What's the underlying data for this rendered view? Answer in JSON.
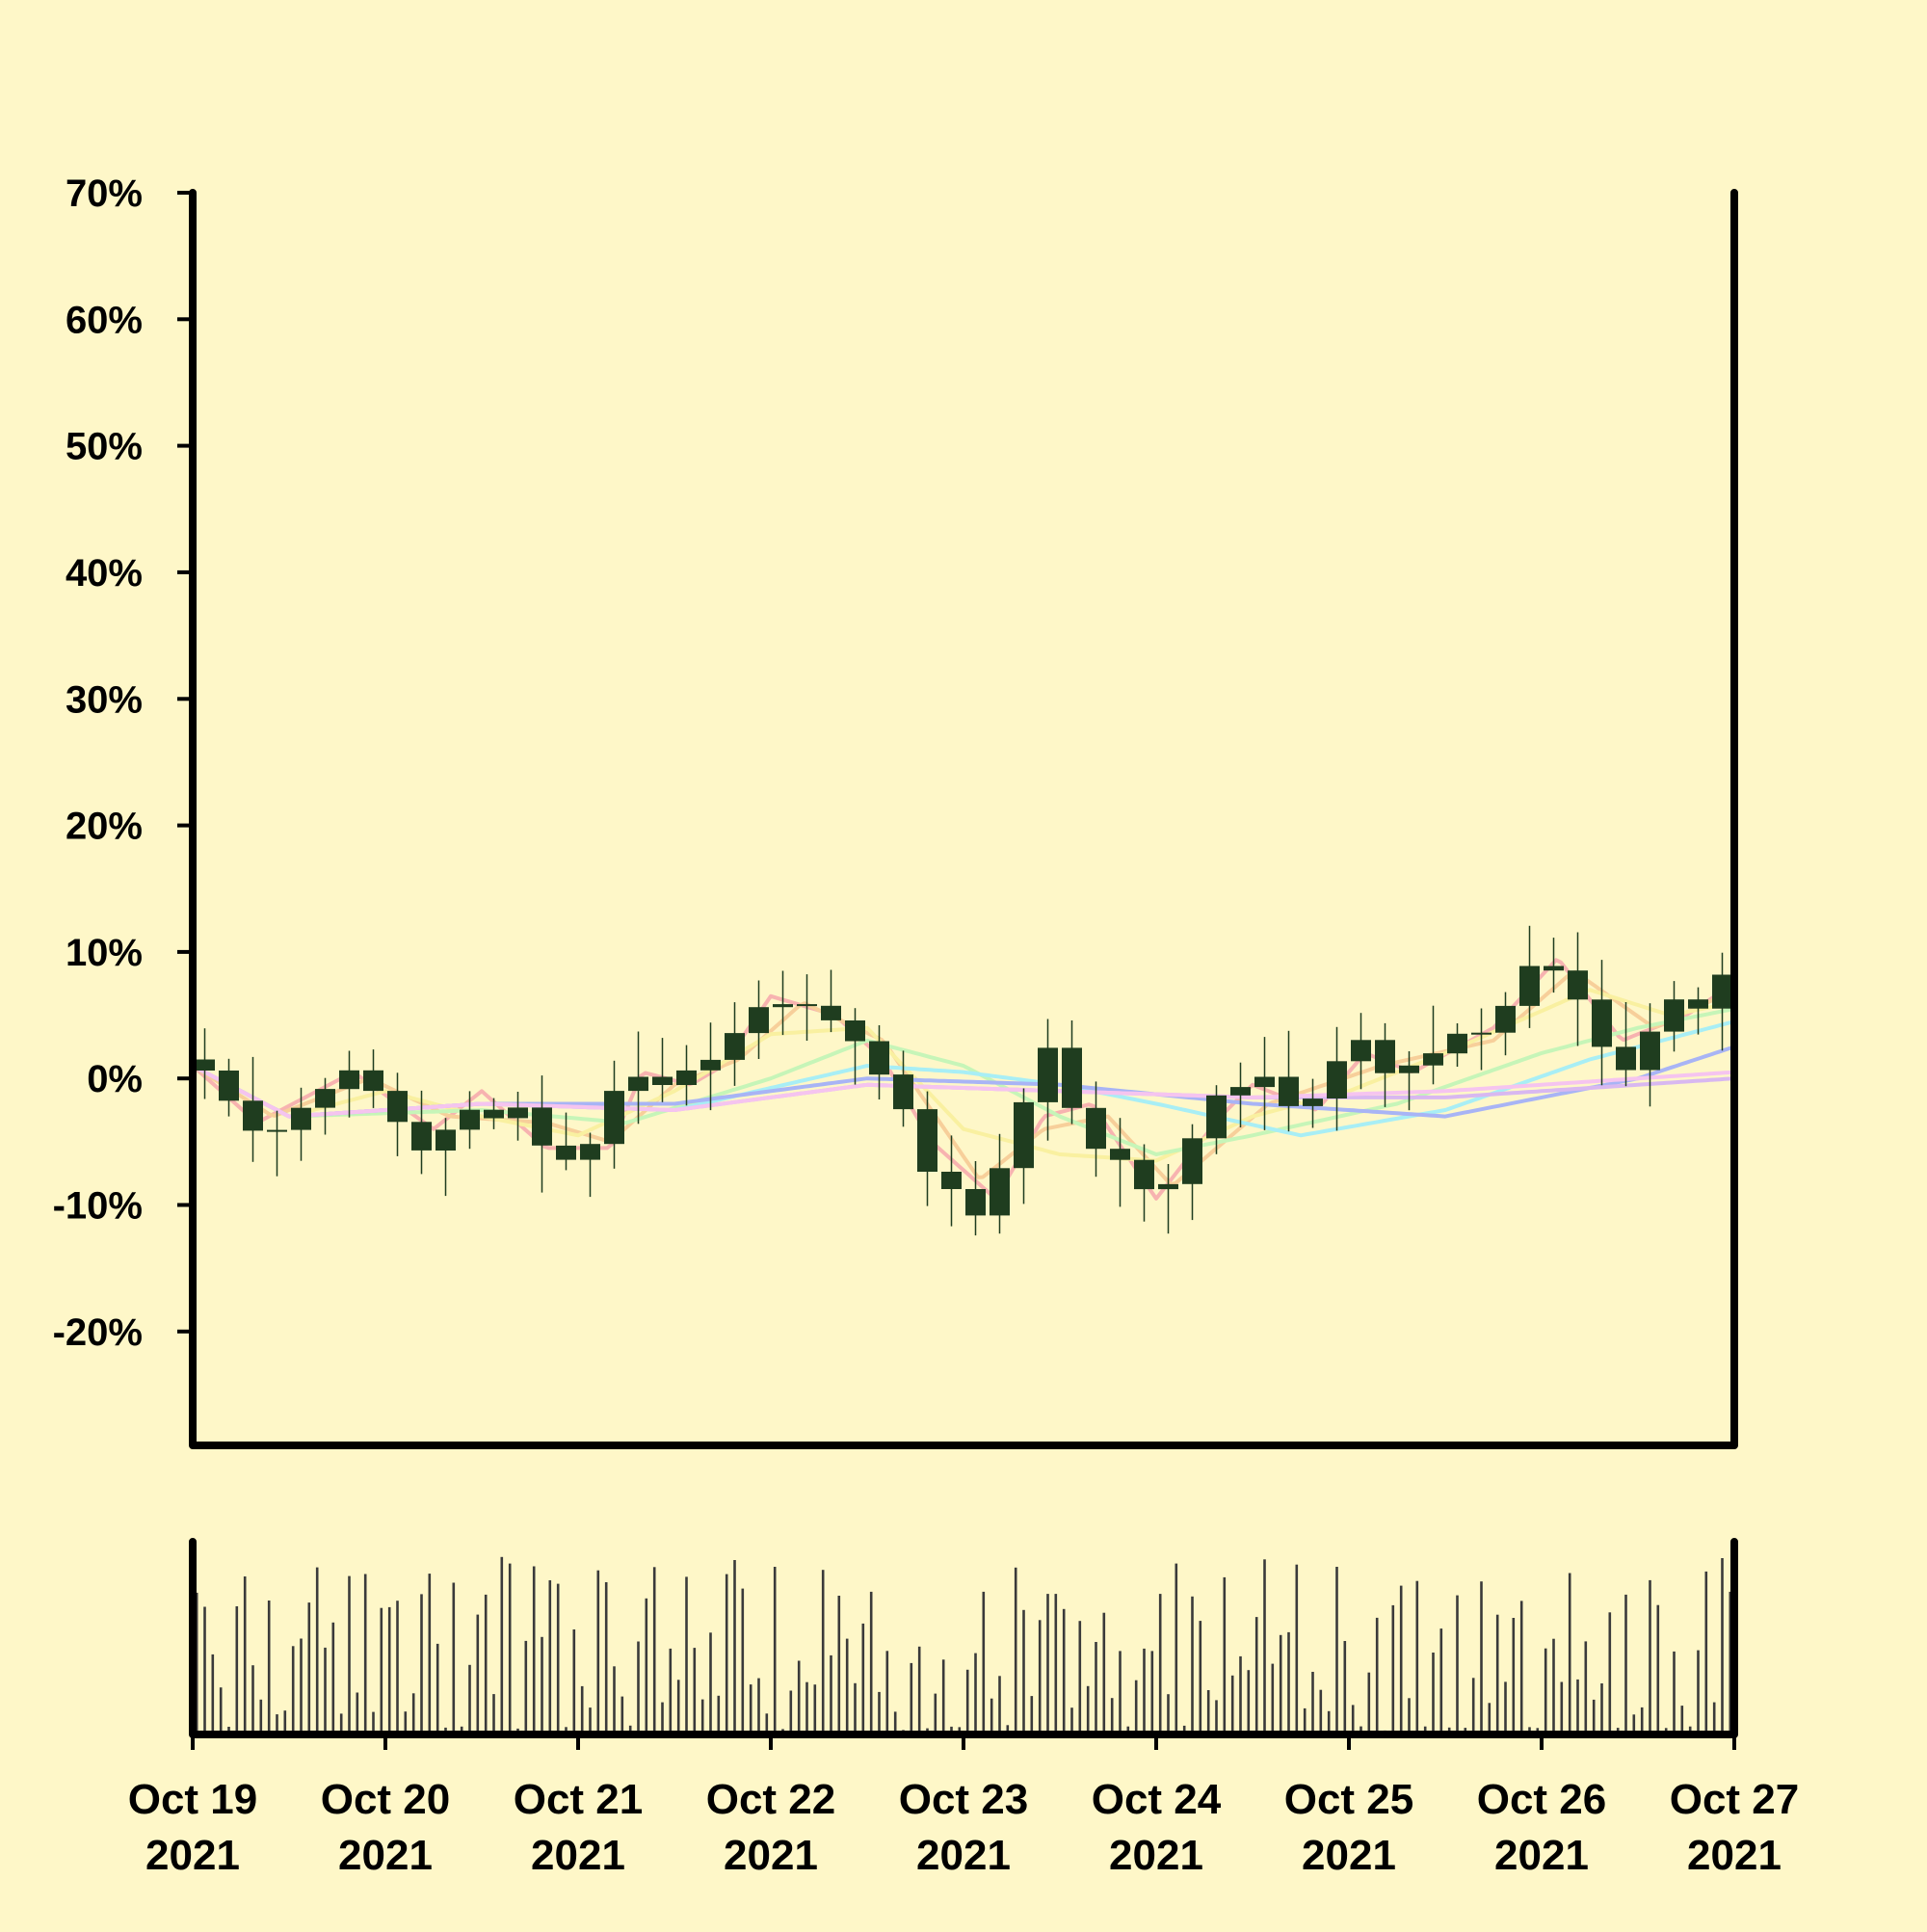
{
  "chart_data": {
    "type": "candlestick",
    "background": "#fef7c8",
    "y_axis": {
      "min": -29,
      "max": 70,
      "ticks": [
        70,
        60,
        50,
        40,
        30,
        20,
        10,
        0,
        -10,
        -20
      ],
      "tick_labels": [
        "70%",
        "60%",
        "50%",
        "40%",
        "30%",
        "20%",
        "10%",
        "0%",
        "-10%",
        "-20%"
      ]
    },
    "x_axis": {
      "start": "2021-10-19",
      "end": "2021-10-27",
      "tick_labels": [
        {
          "date": "2021-10-19",
          "line1": "Oct 19",
          "line2": "2021"
        },
        {
          "date": "2021-10-20",
          "line1": "Oct 20",
          "line2": "2021"
        },
        {
          "date": "2021-10-21",
          "line1": "Oct 21",
          "line2": "2021"
        },
        {
          "date": "2021-10-22",
          "line1": "Oct 22",
          "line2": "2021"
        },
        {
          "date": "2021-10-23",
          "line1": "Oct 23",
          "line2": "2021"
        },
        {
          "date": "2021-10-24",
          "line1": "Oct 24",
          "line2": "2021"
        },
        {
          "date": "2021-10-25",
          "line1": "Oct 25",
          "line2": "2021"
        },
        {
          "date": "2021-10-26",
          "line1": "Oct 26",
          "line2": "2021"
        },
        {
          "date": "2021-10-27",
          "line1": "Oct 27",
          "line2": "2021"
        }
      ]
    },
    "candle_color": "#1f3d1f",
    "volume_color": "#3a3a3a",
    "close_anchors": [
      {
        "date": "2021-10-19T00:00",
        "value": 1.5
      },
      {
        "date": "2021-10-19T06:00",
        "value": -4
      },
      {
        "date": "2021-10-19T12:00",
        "value": -3
      },
      {
        "date": "2021-10-19T18:00",
        "value": 0.5
      },
      {
        "date": "2021-10-20T00:00",
        "value": -2
      },
      {
        "date": "2021-10-20T04:00",
        "value": -5
      },
      {
        "date": "2021-10-20T10:00",
        "value": -2
      },
      {
        "date": "2021-10-20T16:00",
        "value": -2.5
      },
      {
        "date": "2021-10-20T22:00",
        "value": -5.5
      },
      {
        "date": "2021-10-21T03:00",
        "value": -4.5
      },
      {
        "date": "2021-10-21T06:00",
        "value": 1
      },
      {
        "date": "2021-10-21T12:00",
        "value": -1
      },
      {
        "date": "2021-10-21T18:00",
        "value": 1.5
      },
      {
        "date": "2021-10-22T00:00",
        "value": 7
      },
      {
        "date": "2021-10-22T06:00",
        "value": 5
      },
      {
        "date": "2021-10-22T10:00",
        "value": 4.5
      },
      {
        "date": "2021-10-22T14:00",
        "value": 0
      },
      {
        "date": "2021-10-22T20:00",
        "value": -7
      },
      {
        "date": "2021-10-23T02:00",
        "value": -11
      },
      {
        "date": "2021-10-23T06:00",
        "value": -4
      },
      {
        "date": "2021-10-23T10:00",
        "value": 2.5
      },
      {
        "date": "2021-10-23T14:00",
        "value": -4
      },
      {
        "date": "2021-10-23T20:00",
        "value": -6
      },
      {
        "date": "2021-10-24T00:00",
        "value": -11
      },
      {
        "date": "2021-10-24T06:00",
        "value": -2
      },
      {
        "date": "2021-10-24T12:00",
        "value": 0
      },
      {
        "date": "2021-10-24T18:00",
        "value": -3
      },
      {
        "date": "2021-10-25T00:00",
        "value": 3
      },
      {
        "date": "2021-10-25T06:00",
        "value": 0
      },
      {
        "date": "2021-10-25T12:00",
        "value": 2
      },
      {
        "date": "2021-10-25T18:00",
        "value": 5
      },
      {
        "date": "2021-10-26T00:00",
        "value": 11
      },
      {
        "date": "2021-10-26T06:00",
        "value": 4
      },
      {
        "date": "2021-10-26T10:00",
        "value": 1
      },
      {
        "date": "2021-10-26T16:00",
        "value": 6
      },
      {
        "date": "2021-10-26T22:00",
        "value": 7
      },
      {
        "date": "2021-10-27T00:00",
        "value": 9.5
      }
    ],
    "moving_averages": [
      {
        "color": "#f7b3b0",
        "anchors": [
          {
            "date": "2021-10-19T00:00",
            "value": 1
          },
          {
            "date": "2021-10-19T08:00",
            "value": -3.5
          },
          {
            "date": "2021-10-19T20:00",
            "value": 0.5
          },
          {
            "date": "2021-10-20T06:00",
            "value": -4
          },
          {
            "date": "2021-10-20T12:00",
            "value": -1
          },
          {
            "date": "2021-10-20T20:00",
            "value": -5.5
          },
          {
            "date": "2021-10-21T04:00",
            "value": -5.5
          },
          {
            "date": "2021-10-21T08:00",
            "value": 0.5
          },
          {
            "date": "2021-10-21T14:00",
            "value": -0.5
          },
          {
            "date": "2021-10-21T18:00",
            "value": 1
          },
          {
            "date": "2021-10-22T00:00",
            "value": 6.5
          },
          {
            "date": "2021-10-22T08:00",
            "value": 5
          },
          {
            "date": "2021-10-22T14:00",
            "value": 1.5
          },
          {
            "date": "2021-10-22T20:00",
            "value": -5
          },
          {
            "date": "2021-10-23T04:00",
            "value": -9.5
          },
          {
            "date": "2021-10-23T10:00",
            "value": -3
          },
          {
            "date": "2021-10-23T16:00",
            "value": -2
          },
          {
            "date": "2021-10-24T00:00",
            "value": -9.5
          },
          {
            "date": "2021-10-24T08:00",
            "value": -3
          },
          {
            "date": "2021-10-24T12:00",
            "value": -0.5
          },
          {
            "date": "2021-10-24T20:00",
            "value": -2.5
          },
          {
            "date": "2021-10-25T02:00",
            "value": 2
          },
          {
            "date": "2021-10-25T08:00",
            "value": 0.5
          },
          {
            "date": "2021-10-25T18:00",
            "value": 4
          },
          {
            "date": "2021-10-26T02:00",
            "value": 9.5
          },
          {
            "date": "2021-10-26T10:00",
            "value": 3
          },
          {
            "date": "2021-10-26T18:00",
            "value": 5
          },
          {
            "date": "2021-10-27T00:00",
            "value": 7.5
          }
        ]
      },
      {
        "color": "#f7cf9a",
        "anchors": [
          {
            "date": "2021-10-19T00:00",
            "value": 1
          },
          {
            "date": "2021-10-19T10:00",
            "value": -3
          },
          {
            "date": "2021-10-19T22:00",
            "value": 0
          },
          {
            "date": "2021-10-20T08:00",
            "value": -3
          },
          {
            "date": "2021-10-20T20:00",
            "value": -3.5
          },
          {
            "date": "2021-10-21T04:00",
            "value": -5
          },
          {
            "date": "2021-10-21T12:00",
            "value": -0.5
          },
          {
            "date": "2021-10-21T20:00",
            "value": 1.5
          },
          {
            "date": "2021-10-22T04:00",
            "value": 6
          },
          {
            "date": "2021-10-22T14:00",
            "value": 3
          },
          {
            "date": "2021-10-23T02:00",
            "value": -8
          },
          {
            "date": "2021-10-23T10:00",
            "value": -4
          },
          {
            "date": "2021-10-23T18:00",
            "value": -3
          },
          {
            "date": "2021-10-24T02:00",
            "value": -8.5
          },
          {
            "date": "2021-10-24T14:00",
            "value": -2
          },
          {
            "date": "2021-10-25T04:00",
            "value": 1
          },
          {
            "date": "2021-10-25T18:00",
            "value": 3
          },
          {
            "date": "2021-10-26T04:00",
            "value": 8.5
          },
          {
            "date": "2021-10-26T14:00",
            "value": 4
          },
          {
            "date": "2021-10-27T00:00",
            "value": 7
          }
        ]
      },
      {
        "color": "#f9f0a0",
        "anchors": [
          {
            "date": "2021-10-19T00:00",
            "value": 1
          },
          {
            "date": "2021-10-19T12:00",
            "value": -3
          },
          {
            "date": "2021-10-20T00:00",
            "value": -1
          },
          {
            "date": "2021-10-20T12:00",
            "value": -3
          },
          {
            "date": "2021-10-21T00:00",
            "value": -4.5
          },
          {
            "date": "2021-10-21T12:00",
            "value": -1
          },
          {
            "date": "2021-10-22T00:00",
            "value": 3.5
          },
          {
            "date": "2021-10-22T12:00",
            "value": 4
          },
          {
            "date": "2021-10-23T00:00",
            "value": -4
          },
          {
            "date": "2021-10-23T12:00",
            "value": -6
          },
          {
            "date": "2021-10-24T00:00",
            "value": -6.5
          },
          {
            "date": "2021-10-24T12:00",
            "value": -3
          },
          {
            "date": "2021-10-25T00:00",
            "value": -1
          },
          {
            "date": "2021-10-25T12:00",
            "value": 2
          },
          {
            "date": "2021-10-26T06:00",
            "value": 7
          },
          {
            "date": "2021-10-26T16:00",
            "value": 5
          },
          {
            "date": "2021-10-27T00:00",
            "value": 6
          }
        ]
      },
      {
        "color": "#c6f5b8",
        "anchors": [
          {
            "date": "2021-10-19T00:00",
            "value": 1
          },
          {
            "date": "2021-10-19T12:00",
            "value": -3
          },
          {
            "date": "2021-10-20T12:00",
            "value": -2.5
          },
          {
            "date": "2021-10-21T06:00",
            "value": -3.5
          },
          {
            "date": "2021-10-22T00:00",
            "value": 0
          },
          {
            "date": "2021-10-22T12:00",
            "value": 3
          },
          {
            "date": "2021-10-23T00:00",
            "value": 1
          },
          {
            "date": "2021-10-23T12:00",
            "value": -3
          },
          {
            "date": "2021-10-24T00:00",
            "value": -6
          },
          {
            "date": "2021-10-24T12:00",
            "value": -4.5
          },
          {
            "date": "2021-10-25T06:00",
            "value": -2
          },
          {
            "date": "2021-10-26T00:00",
            "value": 2
          },
          {
            "date": "2021-10-26T12:00",
            "value": 4
          },
          {
            "date": "2021-10-27T00:00",
            "value": 5.5
          }
        ]
      },
      {
        "color": "#a8eef5",
        "anchors": [
          {
            "date": "2021-10-19T00:00",
            "value": 1
          },
          {
            "date": "2021-10-19T12:00",
            "value": -3
          },
          {
            "date": "2021-10-20T12:00",
            "value": -2
          },
          {
            "date": "2021-10-21T12:00",
            "value": -2.5
          },
          {
            "date": "2021-10-22T12:00",
            "value": 1
          },
          {
            "date": "2021-10-23T00:00",
            "value": 0.5
          },
          {
            "date": "2021-10-23T12:00",
            "value": -0.5
          },
          {
            "date": "2021-10-24T00:00",
            "value": -2
          },
          {
            "date": "2021-10-24T18:00",
            "value": -4.5
          },
          {
            "date": "2021-10-25T12:00",
            "value": -2.5
          },
          {
            "date": "2021-10-26T06:00",
            "value": 1.5
          },
          {
            "date": "2021-10-27T00:00",
            "value": 4.5
          }
        ]
      },
      {
        "color": "#a8b4f5",
        "anchors": [
          {
            "date": "2021-10-19T00:00",
            "value": 1
          },
          {
            "date": "2021-10-19T12:00",
            "value": -3
          },
          {
            "date": "2021-10-20T12:00",
            "value": -2
          },
          {
            "date": "2021-10-21T12:00",
            "value": -2
          },
          {
            "date": "2021-10-22T12:00",
            "value": 0
          },
          {
            "date": "2021-10-23T12:00",
            "value": -0.5
          },
          {
            "date": "2021-10-24T12:00",
            "value": -2
          },
          {
            "date": "2021-10-25T12:00",
            "value": -3
          },
          {
            "date": "2021-10-26T12:00",
            "value": 0
          },
          {
            "date": "2021-10-27T00:00",
            "value": 2.5
          }
        ]
      },
      {
        "color": "#d8b8f0",
        "anchors": [
          {
            "date": "2021-10-19T00:00",
            "value": 1
          },
          {
            "date": "2021-10-19T12:00",
            "value": -3
          },
          {
            "date": "2021-10-20T12:00",
            "value": -2
          },
          {
            "date": "2021-10-21T12:00",
            "value": -2.5
          },
          {
            "date": "2021-10-22T12:00",
            "value": -0.5
          },
          {
            "date": "2021-10-23T12:00",
            "value": -1
          },
          {
            "date": "2021-10-24T12:00",
            "value": -1.5
          },
          {
            "date": "2021-10-25T12:00",
            "value": -1.5
          },
          {
            "date": "2021-10-26T12:00",
            "value": -0.5
          },
          {
            "date": "2021-10-27T00:00",
            "value": 0
          }
        ]
      },
      {
        "color": "#f5c4ef",
        "anchors": [
          {
            "date": "2021-10-19T00:00",
            "value": 1
          },
          {
            "date": "2021-10-19T12:00",
            "value": -3
          },
          {
            "date": "2021-10-20T12:00",
            "value": -2
          },
          {
            "date": "2021-10-21T12:00",
            "value": -2.5
          },
          {
            "date": "2021-10-22T12:00",
            "value": -0.5
          },
          {
            "date": "2021-10-23T12:00",
            "value": -1
          },
          {
            "date": "2021-10-24T12:00",
            "value": -1.5
          },
          {
            "date": "2021-10-25T12:00",
            "value": -1
          },
          {
            "date": "2021-10-26T12:00",
            "value": 0
          },
          {
            "date": "2021-10-27T00:00",
            "value": 0.5
          }
        ]
      }
    ]
  }
}
